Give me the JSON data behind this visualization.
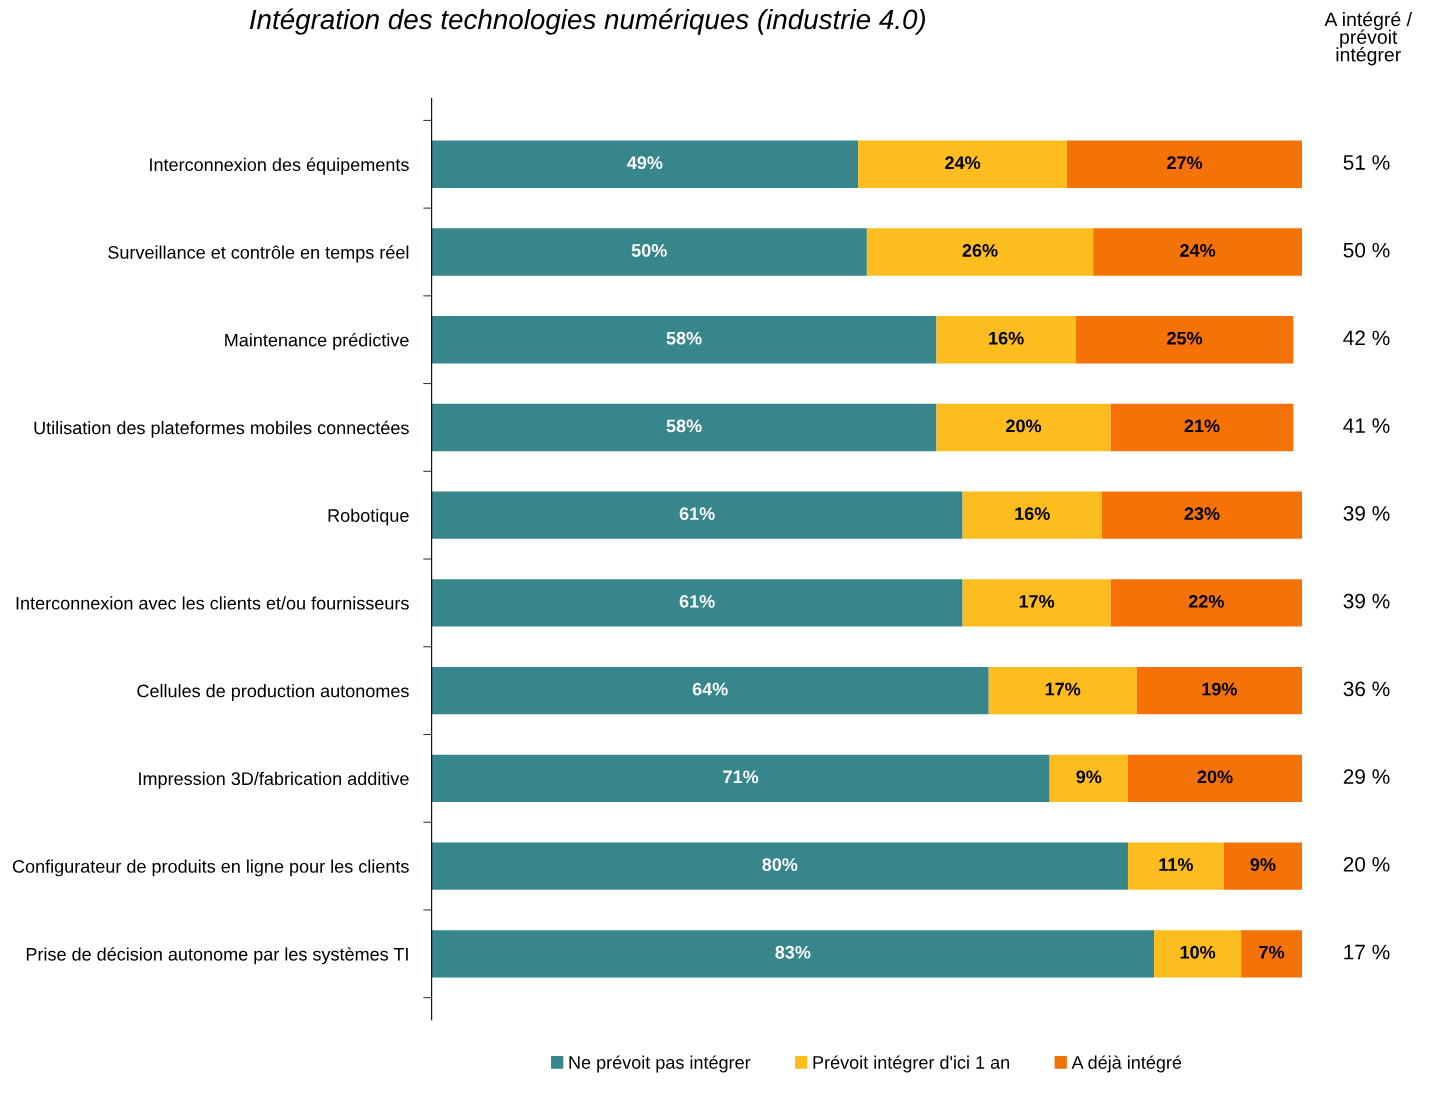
{
  "chart_data": {
    "type": "bar",
    "orientation": "horizontal",
    "stacked": true,
    "title": "Intégration des technologies numériques (industrie 4.0)",
    "categories": [
      "Interconnexion des équipements",
      "Surveillance et contrôle en temps réel",
      "Maintenance prédictive",
      "Utilisation des plateformes mobiles connectées",
      "Robotique",
      "Interconnexion avec les clients et/ou fournisseurs",
      "Cellules de production autonomes",
      "Impression 3D/fabrication additive",
      "Configurateur de produits en ligne pour les clients",
      "Prise de décision autonome par les systèmes TI"
    ],
    "series": [
      {
        "name": "Ne prévoit pas intégrer",
        "color": "#37868b",
        "values": [
          49,
          50,
          58,
          58,
          61,
          61,
          64,
          71,
          80,
          83
        ],
        "value_labels": [
          "49%",
          "50%",
          "58%",
          "58%",
          "61%",
          "61%",
          "64%",
          "71%",
          "80%",
          "83%"
        ]
      },
      {
        "name": "Prévoit intégrer d'ici 1 an",
        "color": "#fdbd1f",
        "values": [
          24,
          26,
          16,
          20,
          16,
          17,
          17,
          9,
          11,
          10
        ],
        "value_labels": [
          "24%",
          "26%",
          "16%",
          "20%",
          "16%",
          "17%",
          "17%",
          "9%",
          "11%",
          "10%"
        ]
      },
      {
        "name": "A déjà intégré",
        "color": "#f57206",
        "values": [
          27,
          24,
          25,
          21,
          23,
          22,
          19,
          20,
          9,
          7
        ],
        "value_labels": [
          "27%",
          "24%",
          "25%",
          "21%",
          "23%",
          "22%",
          "19%",
          "20%",
          "9%",
          "7%"
        ]
      }
    ],
    "xlim": [
      0,
      100
    ],
    "tick_labels": "y",
    "legend": "bottom",
    "grid": false,
    "annotations": [
      "A intégré /\nprévoit\nintégrer",
      "51 %",
      "50 %",
      "42 %",
      "41 %",
      "39 %",
      "39 %",
      "36 %",
      "29 %",
      "20 %",
      "17 %"
    ]
  }
}
